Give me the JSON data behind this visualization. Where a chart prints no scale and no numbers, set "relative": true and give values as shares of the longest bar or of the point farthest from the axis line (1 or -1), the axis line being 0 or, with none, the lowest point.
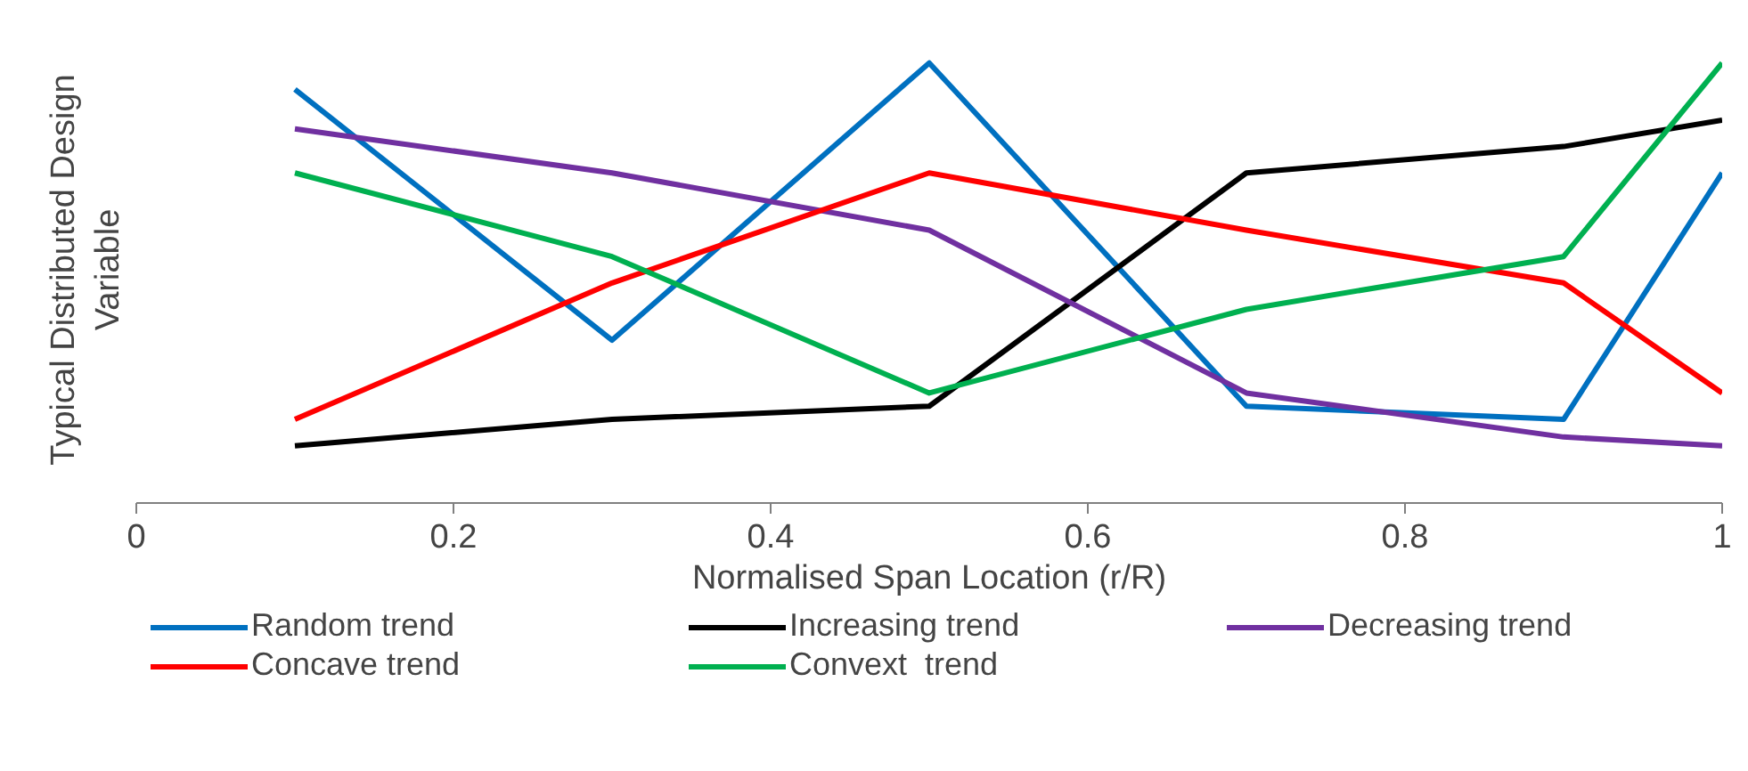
{
  "chart_data": {
    "type": "line",
    "relative": true,
    "xlabel": "Normalised Span Location (r/R)",
    "ylabel": "Typical Distributed Design Variable",
    "x": [
      0.1,
      0.3,
      0.5,
      0.7,
      0.9,
      1.0
    ],
    "xlim": [
      0,
      1
    ],
    "xticks": [
      0,
      0.2,
      0.4,
      0.6,
      0.8,
      1
    ],
    "grid": false,
    "legend": "bottom",
    "marker": "none",
    "line_style": "solid",
    "series": [
      {
        "name": "Random trend",
        "color": "#0070c0",
        "values": [
          0.94,
          0.37,
          1.0,
          0.22,
          0.19,
          0.75
        ]
      },
      {
        "name": "Increasing trend",
        "color": "#000000",
        "values": [
          0.13,
          0.19,
          0.22,
          0.75,
          0.81,
          0.87
        ]
      },
      {
        "name": "Decreasing trend",
        "color": "#7030a0",
        "values": [
          0.85,
          0.75,
          0.62,
          0.25,
          0.15,
          0.13
        ]
      },
      {
        "name": "Concave trend",
        "color": "#ff0000",
        "values": [
          0.19,
          0.5,
          0.75,
          0.62,
          0.5,
          0.25
        ]
      },
      {
        "name": "Convext  trend",
        "color": "#00b050",
        "values": [
          0.75,
          0.56,
          0.25,
          0.44,
          0.56,
          1.0
        ]
      }
    ]
  }
}
